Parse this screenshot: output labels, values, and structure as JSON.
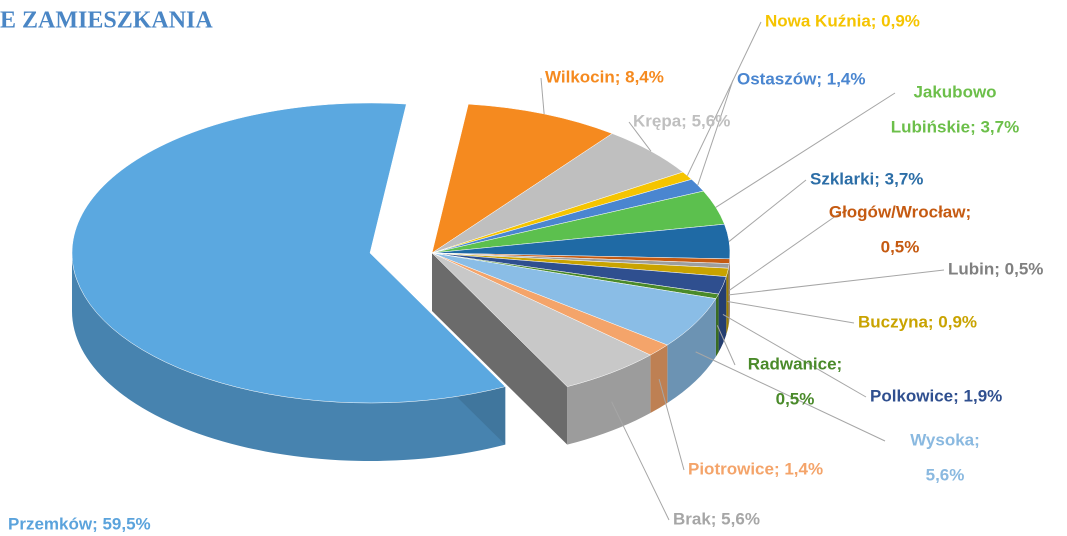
{
  "chart_data": {
    "type": "pie3d",
    "title": "E ZAMIESZKANIA",
    "values": [
      8.4,
      5.6,
      0.9,
      1.4,
      3.7,
      3.7,
      0.5,
      0.5,
      0.9,
      1.9,
      0.5,
      5.6,
      1.4,
      5.6,
      59.5
    ],
    "value_labels": [
      [
        "Wilkocin; 8,4%"
      ],
      [
        "Krępa; 5,6%"
      ],
      [
        "Nowa Kuźnia; 0,9%"
      ],
      [
        "Ostaszów; 1,4%"
      ],
      [
        "Jakubowo",
        "Lubińskie; 3,7%"
      ],
      [
        "Szklarki; 3,7%"
      ],
      [
        "Głogów/Wrocław;",
        "0,5%"
      ],
      [
        "Lubin; 0,5%"
      ],
      [
        "Buczyna; 0,9%"
      ],
      [
        "Polkowice; 1,9%"
      ],
      [
        "Radwanice;",
        "0,5%"
      ],
      [
        "Wysoka;",
        "5,6%"
      ],
      [
        "Piotrowice; 1,4%"
      ],
      [
        "Brak; 5,6%"
      ],
      [
        "Przemków; 59,5%"
      ]
    ],
    "colors": [
      "#f58a1f",
      "#bfbfbf",
      "#f5c400",
      "#4a86d0",
      "#5cc04e",
      "#1f6aa5",
      "#c55a11",
      "#9e9e9e",
      "#c9a300",
      "#2f4f8f",
      "#4a8a2a",
      "#8abde6",
      "#f4a46a",
      "#c8c8c8",
      "#5ba8e0"
    ],
    "label_colors": [
      "#f58a1f",
      "#bfbfbf",
      "#f5c400",
      "#4a86d0",
      "#6cbf4a",
      "#2c6ea7",
      "#c55a11",
      "#808080",
      "#c9a300",
      "#2f4f8f",
      "#4a8a2a",
      "#8ab9e0",
      "#f4a46a",
      "#a6a6a6",
      "#5ba3dc"
    ]
  }
}
